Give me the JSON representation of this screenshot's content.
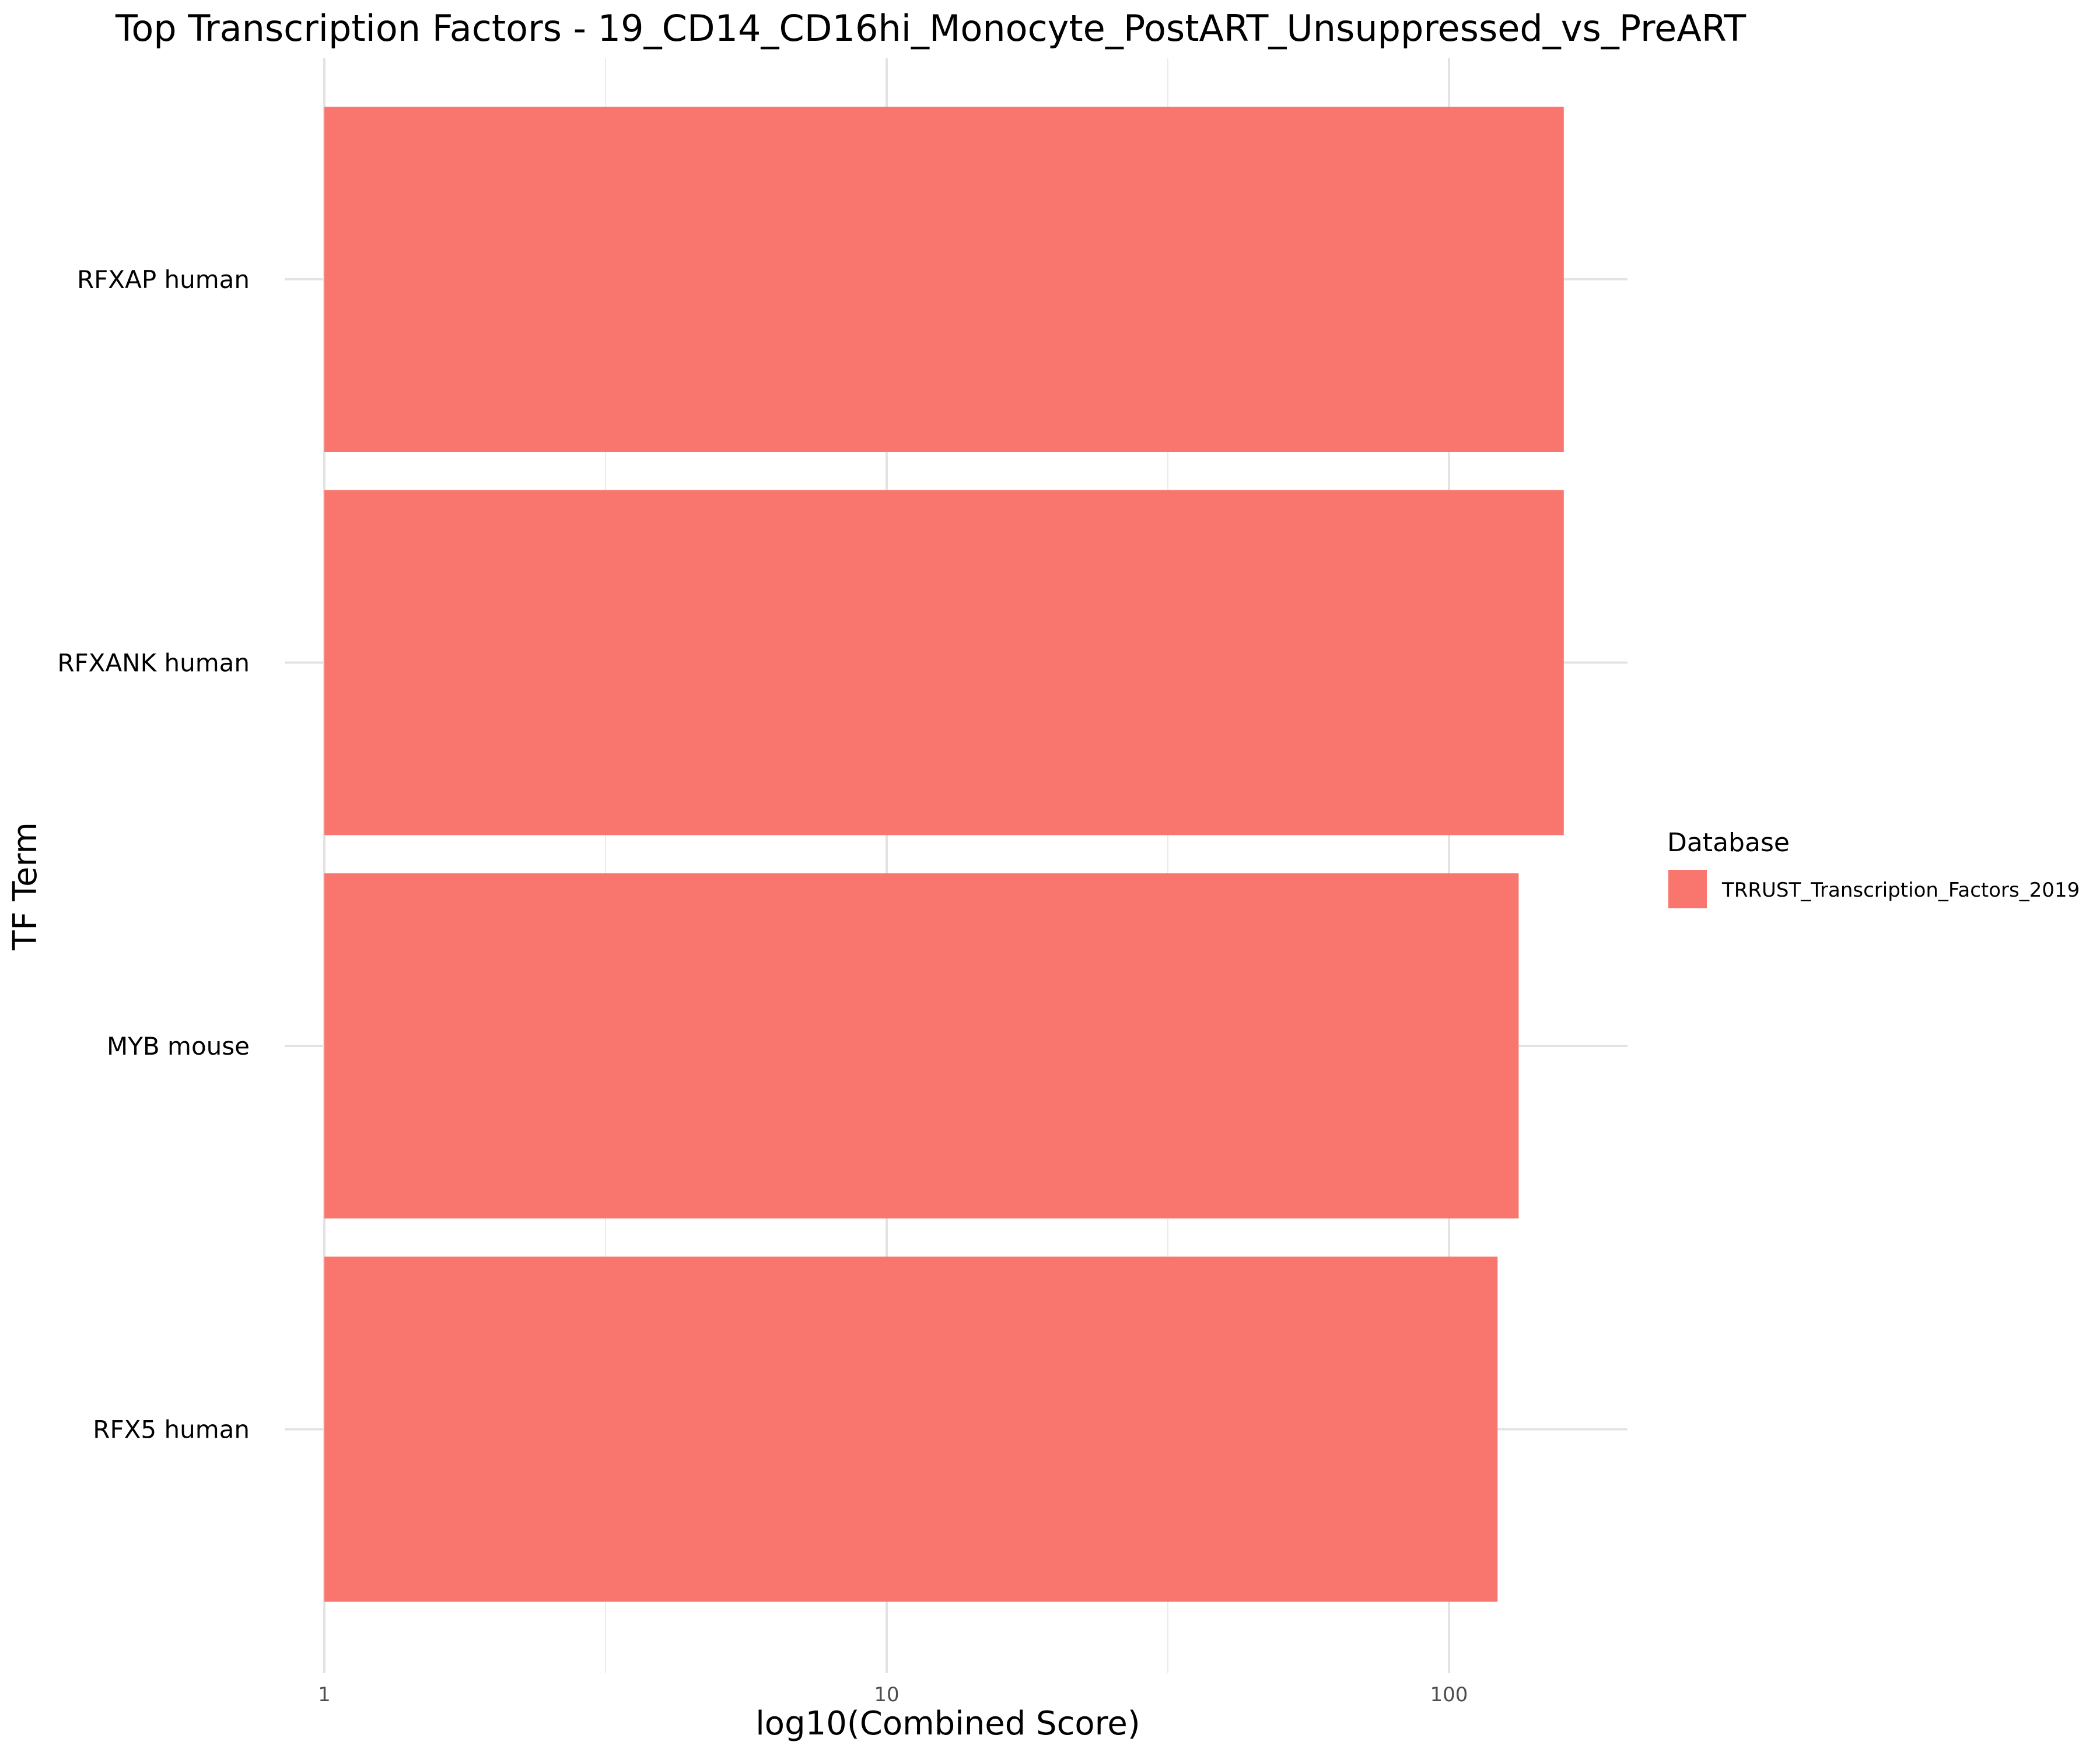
{
  "chart_data": {
    "type": "bar",
    "orientation": "horizontal",
    "title": "Top Transcription Factors - 19_CD14_CD16hi_Monocyte_PostART_Unsuppressed_vs_PreART",
    "xlabel": "log10(Combined Score)",
    "ylabel": "TF Term",
    "x_scale": "log10",
    "xlim": [
      1,
      200
    ],
    "x_ticks": [
      1,
      10,
      100
    ],
    "x_tick_labels": [
      "1",
      "10",
      "100"
    ],
    "grid": true,
    "categories": [
      "RFXAP human",
      "RFXANK human",
      "MYB mouse",
      "RFX5 human"
    ],
    "series": [
      {
        "name": "TRRUST_Transcription_Factors_2019",
        "values": [
          160,
          160,
          133,
          122
        ],
        "color": "#F8766D"
      }
    ],
    "legend": {
      "title": "Database",
      "placement": "right",
      "entries": [
        "TRRUST_Transcription_Factors_2019"
      ]
    }
  }
}
